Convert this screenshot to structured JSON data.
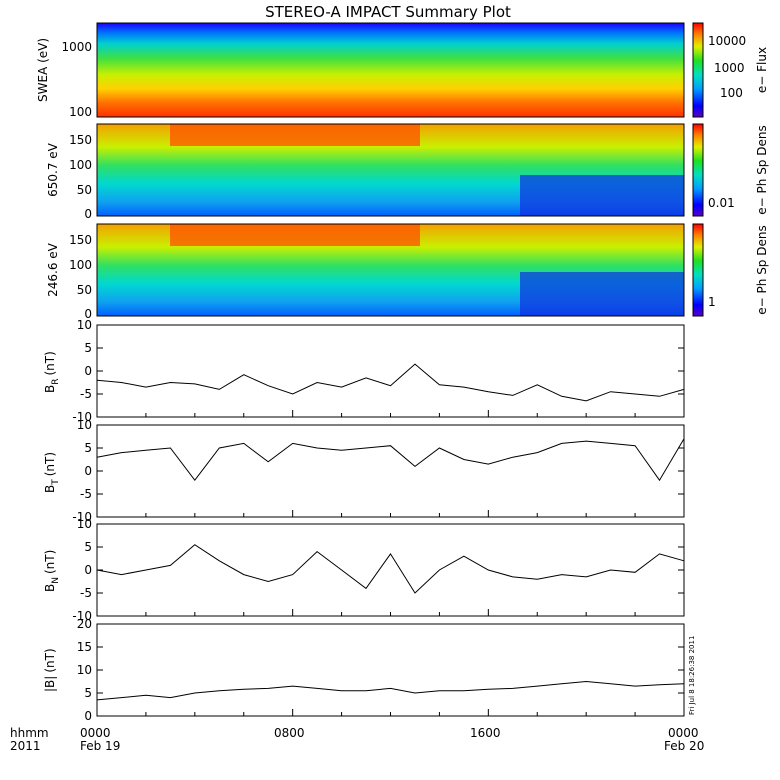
{
  "title": "STEREO-A IMPACT Summary Plot",
  "colors": {
    "frame": "#000000",
    "trace": "#000000",
    "background": "#ffffff"
  },
  "footer": {
    "left_top": "hhmm",
    "left_bottom": "2011",
    "time_ticks": [
      "0000",
      "0800",
      "1600",
      "0000"
    ],
    "date_left": "Feb 19",
    "date_right": "Feb 20",
    "stamp": "Fri Jul 8 18:26:38 2011"
  },
  "chart_data": [
    {
      "type": "heatmap",
      "ylabel": "SWEA (eV)",
      "yscale": "log",
      "ylim": [
        95,
        1900
      ],
      "yticks": [
        "1000",
        "100"
      ],
      "colorbar": {
        "label": "e− Flux",
        "ticks": [
          "10000",
          "1000",
          "100"
        ]
      },
      "description_levels": {
        "top_energy": "low flux (blue)",
        "bottom_energy": "high flux (red)"
      }
    },
    {
      "type": "heatmap",
      "ylabel": "650.7 eV",
      "ylim": [
        0,
        180
      ],
      "yticks": [
        "150",
        "100",
        "50",
        "0"
      ],
      "colorbar": {
        "label": "e− Ph Sp Dens",
        "ticks": [
          "0.01"
        ]
      }
    },
    {
      "type": "heatmap",
      "ylabel": "246.6 eV",
      "ylim": [
        0,
        180
      ],
      "yticks": [
        "150",
        "100",
        "50",
        "0"
      ],
      "colorbar": {
        "label": "e− Ph Sp Dens",
        "ticks": [
          "1"
        ]
      }
    },
    {
      "type": "line",
      "ylabel": "B_R (nT)",
      "ylabel_main": "B",
      "ylabel_sub": "R",
      "ylabel_unit": "(nT)",
      "ylim": [
        -10,
        10
      ],
      "yticks": [
        10,
        5,
        0,
        -5,
        -10
      ],
      "x": [
        0,
        1,
        2,
        3,
        4,
        5,
        6,
        7,
        8,
        9,
        10,
        11,
        12,
        13,
        14,
        15,
        16,
        17,
        18,
        19,
        20,
        21,
        22,
        23,
        24
      ],
      "y": [
        -2,
        -2.5,
        -3.5,
        -2.5,
        -2.8,
        -4,
        -0.8,
        -3.2,
        -5,
        -2.5,
        -3.5,
        -1.5,
        -3.2,
        1.5,
        -3,
        -3.5,
        -4.5,
        -5.3,
        -3,
        -5.5,
        -6.5,
        -4.5,
        -5,
        -5.5,
        -4
      ]
    },
    {
      "type": "line",
      "ylabel": "B_T (nT)",
      "ylabel_main": "B",
      "ylabel_sub": "T",
      "ylabel_unit": "(nT)",
      "ylim": [
        -10,
        10
      ],
      "yticks": [
        10,
        5,
        0,
        -5,
        -10
      ],
      "x": [
        0,
        1,
        2,
        3,
        4,
        5,
        6,
        7,
        8,
        9,
        10,
        11,
        12,
        13,
        14,
        15,
        16,
        17,
        18,
        19,
        20,
        21,
        22,
        23,
        24
      ],
      "y": [
        3,
        4,
        4.5,
        5,
        -2,
        5,
        6,
        2,
        6,
        5,
        4.5,
        5,
        5.5,
        1,
        5,
        2.5,
        1.5,
        3,
        4,
        6,
        6.5,
        6,
        5.5,
        -2,
        7
      ]
    },
    {
      "type": "line",
      "ylabel": "B_N (nT)",
      "ylabel_main": "B",
      "ylabel_sub": "N",
      "ylabel_unit": "(nT)",
      "ylim": [
        -10,
        10
      ],
      "yticks": [
        10,
        5,
        0,
        -5,
        -10
      ],
      "x": [
        0,
        1,
        2,
        3,
        4,
        5,
        6,
        7,
        8,
        9,
        10,
        11,
        12,
        13,
        14,
        15,
        16,
        17,
        18,
        19,
        20,
        21,
        22,
        23,
        24
      ],
      "y": [
        0,
        -1,
        0,
        1,
        5.5,
        2,
        -1,
        -2.5,
        -1,
        4,
        0,
        -4,
        3.5,
        -5,
        0,
        3,
        0,
        -1.5,
        -2,
        -1,
        -1.5,
        0,
        -0.5,
        3.5,
        2
      ]
    },
    {
      "type": "line",
      "ylabel": "|B| (nT)",
      "ylabel_main": "|B|",
      "ylabel_sub": "",
      "ylabel_unit": "(nT)",
      "ylim": [
        0,
        20
      ],
      "yticks": [
        20,
        15,
        10,
        5,
        0
      ],
      "x": [
        0,
        1,
        2,
        3,
        4,
        5,
        6,
        7,
        8,
        9,
        10,
        11,
        12,
        13,
        14,
        15,
        16,
        17,
        18,
        19,
        20,
        21,
        22,
        23,
        24
      ],
      "y": [
        3.5,
        4,
        4.5,
        4,
        5,
        5.5,
        5.8,
        6,
        6.5,
        6,
        5.5,
        5.5,
        6,
        5,
        5.5,
        5.5,
        5.8,
        6,
        6.5,
        7,
        7.5,
        7,
        6.5,
        6.8,
        7
      ]
    }
  ]
}
